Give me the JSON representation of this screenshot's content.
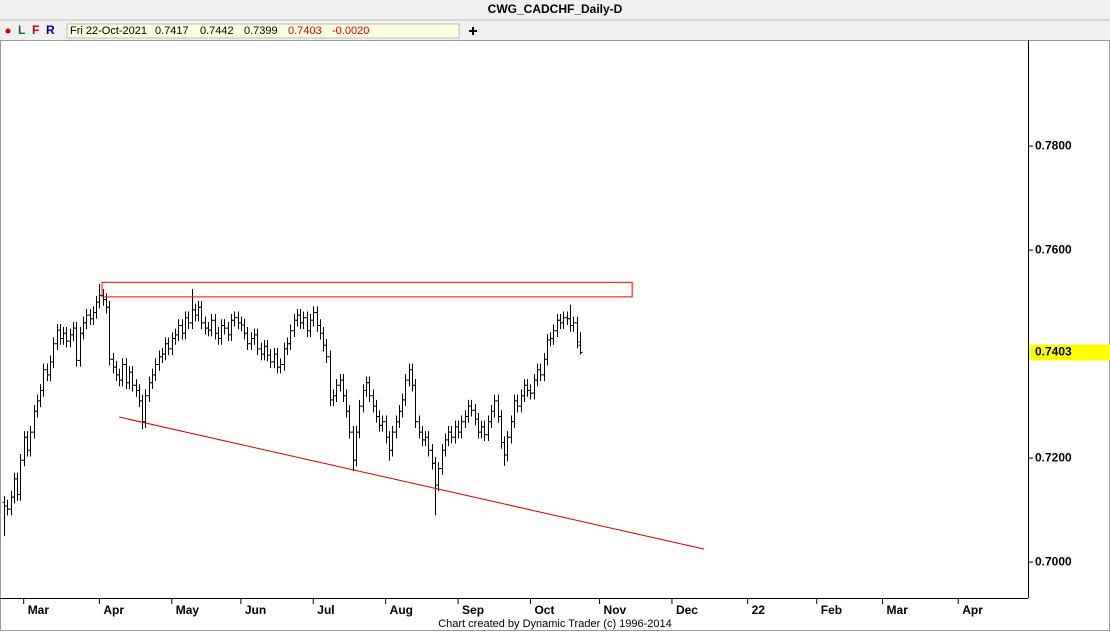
{
  "chart_data": {
    "type": "ohlc",
    "title": "CWG_CADCHF_Daily-D",
    "color": "#000000",
    "open": [
      0.7115,
      0.7108,
      0.7102,
      0.7125,
      0.716,
      0.713,
      0.7196,
      0.724,
      0.7215,
      0.725,
      0.729,
      0.731,
      0.733,
      0.737,
      0.736,
      0.7385,
      0.742,
      0.7446,
      0.743,
      0.744,
      0.7425,
      0.7437,
      0.745,
      0.7388,
      0.744,
      0.746,
      0.7475,
      0.7468,
      0.748,
      0.75,
      0.7513,
      0.7505,
      0.749,
      0.739,
      0.7375,
      0.736,
      0.735,
      0.738,
      0.7345,
      0.7365,
      0.734,
      0.733,
      0.731,
      0.727,
      0.732,
      0.7345,
      0.736,
      0.738,
      0.7395,
      0.74,
      0.742,
      0.741,
      0.743,
      0.7437,
      0.7455,
      0.744,
      0.747,
      0.746,
      0.7485,
      0.7475,
      0.749,
      0.746,
      0.745,
      0.7446,
      0.7465,
      0.744,
      0.743,
      0.7455,
      0.745,
      0.7437,
      0.7465,
      0.747,
      0.746,
      0.7456,
      0.744,
      0.742,
      0.743,
      0.7437,
      0.741,
      0.74,
      0.7415,
      0.7398,
      0.7385,
      0.74,
      0.7375,
      0.738,
      0.741,
      0.742,
      0.7445,
      0.7465,
      0.7475,
      0.746,
      0.747,
      0.7445,
      0.7465,
      0.748,
      0.7455,
      0.744,
      0.7417,
      0.7395,
      0.7312,
      0.732,
      0.734,
      0.735,
      0.732,
      0.729,
      0.725,
      0.7196,
      0.725,
      0.73,
      0.733,
      0.7345,
      0.732,
      0.73,
      0.728,
      0.7263,
      0.727,
      0.724,
      0.7215,
      0.725,
      0.727,
      0.729,
      0.7312,
      0.735,
      0.737,
      0.734,
      0.727,
      0.725,
      0.7235,
      0.724,
      0.7215,
      0.719,
      0.7148,
      0.718,
      0.7215,
      0.7235,
      0.725,
      0.724,
      0.726,
      0.725,
      0.727,
      0.728,
      0.73,
      0.7292,
      0.7275,
      0.725,
      0.726,
      0.7245,
      0.727,
      0.729,
      0.731,
      0.728,
      0.723,
      0.7206,
      0.724,
      0.727,
      0.731,
      0.73,
      0.732,
      0.734,
      0.733,
      0.7325,
      0.735,
      0.737,
      0.736,
      0.739,
      0.7427,
      0.743,
      0.7445,
      0.7465,
      0.746,
      0.747,
      0.7468,
      0.7455,
      0.746,
      0.7417
    ],
    "high": [
      0.7127,
      0.712,
      0.7137,
      0.7172,
      0.7172,
      0.7208,
      0.7252,
      0.7252,
      0.7262,
      0.7302,
      0.7322,
      0.7342,
      0.7382,
      0.7382,
      0.7397,
      0.7432,
      0.7458,
      0.7458,
      0.7452,
      0.7452,
      0.7449,
      0.7462,
      0.7462,
      0.7452,
      0.7472,
      0.7487,
      0.7487,
      0.7492,
      0.7512,
      0.7535,
      0.7525,
      0.7517,
      0.7502,
      0.7402,
      0.7387,
      0.7372,
      0.7392,
      0.7392,
      0.7377,
      0.7377,
      0.7352,
      0.7342,
      0.7322,
      0.7332,
      0.7357,
      0.7372,
      0.7392,
      0.7407,
      0.7412,
      0.7432,
      0.7432,
      0.7442,
      0.7449,
      0.7467,
      0.7467,
      0.7482,
      0.7482,
      0.7525,
      0.7497,
      0.7502,
      0.7502,
      0.7472,
      0.7462,
      0.7477,
      0.7477,
      0.7452,
      0.7467,
      0.7467,
      0.7462,
      0.7477,
      0.7482,
      0.7482,
      0.7472,
      0.7468,
      0.7452,
      0.7442,
      0.7449,
      0.7449,
      0.7422,
      0.7427,
      0.7427,
      0.741,
      0.7412,
      0.7412,
      0.7392,
      0.7422,
      0.7432,
      0.7457,
      0.7477,
      0.7487,
      0.7487,
      0.7482,
      0.7482,
      0.7477,
      0.7492,
      0.7492,
      0.7467,
      0.7452,
      0.7429,
      0.7407,
      0.7332,
      0.7352,
      0.7362,
      0.7362,
      0.7332,
      0.7302,
      0.7262,
      0.7262,
      0.7312,
      0.7342,
      0.7357,
      0.7357,
      0.7332,
      0.7312,
      0.7292,
      0.7282,
      0.7282,
      0.7252,
      0.7262,
      0.7282,
      0.7302,
      0.7324,
      0.7362,
      0.7382,
      0.7382,
      0.7352,
      0.7282,
      0.7262,
      0.7252,
      0.7252,
      0.7227,
      0.7202,
      0.7192,
      0.7227,
      0.7247,
      0.7262,
      0.7262,
      0.7272,
      0.7272,
      0.7282,
      0.7292,
      0.7312,
      0.7312,
      0.7304,
      0.7287,
      0.7272,
      0.7272,
      0.7282,
      0.7302,
      0.7322,
      0.7322,
      0.7292,
      0.7242,
      0.7252,
      0.7282,
      0.7322,
      0.7322,
      0.7332,
      0.7352,
      0.7352,
      0.7342,
      0.7362,
      0.7382,
      0.7382,
      0.7402,
      0.7439,
      0.7442,
      0.7457,
      0.7477,
      0.7477,
      0.7482,
      0.7482,
      0.7495,
      0.7472,
      0.7472,
      0.7442
    ],
    "low": [
      0.705,
      0.709,
      0.709,
      0.7113,
      0.7118,
      0.7118,
      0.7184,
      0.7203,
      0.7203,
      0.7238,
      0.7278,
      0.7298,
      0.7318,
      0.7348,
      0.7348,
      0.7373,
      0.7408,
      0.7418,
      0.7418,
      0.7413,
      0.7413,
      0.7425,
      0.7376,
      0.7376,
      0.7428,
      0.7448,
      0.7456,
      0.7456,
      0.7468,
      0.7488,
      0.7493,
      0.7478,
      0.7378,
      0.7363,
      0.7348,
      0.7338,
      0.7338,
      0.7333,
      0.7333,
      0.7328,
      0.7318,
      0.7298,
      0.7255,
      0.7258,
      0.7308,
      0.7333,
      0.7348,
      0.7368,
      0.7383,
      0.7388,
      0.7398,
      0.7398,
      0.7418,
      0.7425,
      0.7428,
      0.7428,
      0.7448,
      0.7448,
      0.7463,
      0.7463,
      0.7448,
      0.7438,
      0.7434,
      0.7434,
      0.7428,
      0.7418,
      0.7418,
      0.7438,
      0.7425,
      0.7425,
      0.7453,
      0.7448,
      0.7444,
      0.7428,
      0.7408,
      0.7408,
      0.7418,
      0.7398,
      0.7388,
      0.7388,
      0.7386,
      0.7373,
      0.7373,
      0.7363,
      0.7363,
      0.7368,
      0.7398,
      0.7408,
      0.7433,
      0.7453,
      0.7448,
      0.7448,
      0.7433,
      0.7433,
      0.7453,
      0.7443,
      0.7428,
      0.7405,
      0.7383,
      0.73,
      0.73,
      0.7308,
      0.7328,
      0.7308,
      0.7278,
      0.7238,
      0.7175,
      0.7184,
      0.7238,
      0.7288,
      0.7318,
      0.7308,
      0.7288,
      0.7268,
      0.7251,
      0.7251,
      0.7228,
      0.7195,
      0.7203,
      0.7238,
      0.7258,
      0.7278,
      0.73,
      0.7338,
      0.7328,
      0.7258,
      0.7238,
      0.7223,
      0.7223,
      0.7203,
      0.7178,
      0.709,
      0.7136,
      0.7168,
      0.7203,
      0.7223,
      0.7228,
      0.7228,
      0.7238,
      0.7238,
      0.7258,
      0.7268,
      0.728,
      0.7263,
      0.7238,
      0.7238,
      0.7233,
      0.7233,
      0.7258,
      0.7278,
      0.7268,
      0.7218,
      0.7185,
      0.7194,
      0.7228,
      0.7258,
      0.7288,
      0.7288,
      0.7308,
      0.7318,
      0.7313,
      0.7313,
      0.7338,
      0.7348,
      0.7348,
      0.7378,
      0.7415,
      0.7418,
      0.7433,
      0.7448,
      0.7448,
      0.7456,
      0.7443,
      0.7443,
      0.7411,
      0.7399
    ],
    "close": [
      0.7108,
      0.7102,
      0.7125,
      0.716,
      0.713,
      0.7196,
      0.724,
      0.7215,
      0.725,
      0.729,
      0.731,
      0.733,
      0.737,
      0.736,
      0.7385,
      0.742,
      0.7446,
      0.743,
      0.744,
      0.7425,
      0.7437,
      0.745,
      0.7388,
      0.744,
      0.746,
      0.7475,
      0.7468,
      0.748,
      0.75,
      0.7513,
      0.7505,
      0.749,
      0.739,
      0.7375,
      0.736,
      0.735,
      0.738,
      0.7345,
      0.7365,
      0.734,
      0.733,
      0.731,
      0.727,
      0.732,
      0.7345,
      0.736,
      0.738,
      0.7395,
      0.74,
      0.742,
      0.741,
      0.743,
      0.7437,
      0.7455,
      0.744,
      0.747,
      0.746,
      0.7485,
      0.7475,
      0.749,
      0.746,
      0.745,
      0.7446,
      0.7465,
      0.744,
      0.743,
      0.7455,
      0.745,
      0.7437,
      0.7465,
      0.747,
      0.746,
      0.7456,
      0.744,
      0.742,
      0.743,
      0.7437,
      0.741,
      0.74,
      0.7415,
      0.7398,
      0.7385,
      0.74,
      0.7375,
      0.738,
      0.741,
      0.742,
      0.7445,
      0.7465,
      0.7475,
      0.746,
      0.747,
      0.7445,
      0.7465,
      0.748,
      0.7455,
      0.744,
      0.7417,
      0.7395,
      0.7312,
      0.732,
      0.734,
      0.735,
      0.732,
      0.729,
      0.725,
      0.7196,
      0.725,
      0.73,
      0.733,
      0.7345,
      0.732,
      0.73,
      0.728,
      0.7263,
      0.727,
      0.724,
      0.7215,
      0.725,
      0.727,
      0.729,
      0.7312,
      0.735,
      0.737,
      0.734,
      0.727,
      0.725,
      0.7235,
      0.724,
      0.7215,
      0.719,
      0.7148,
      0.718,
      0.7215,
      0.7235,
      0.725,
      0.724,
      0.726,
      0.725,
      0.727,
      0.728,
      0.73,
      0.7292,
      0.7275,
      0.725,
      0.726,
      0.7245,
      0.727,
      0.729,
      0.731,
      0.728,
      0.723,
      0.7206,
      0.724,
      0.727,
      0.731,
      0.73,
      0.732,
      0.734,
      0.733,
      0.7325,
      0.735,
      0.737,
      0.736,
      0.739,
      0.7427,
      0.743,
      0.7445,
      0.7465,
      0.746,
      0.747,
      0.7468,
      0.7455,
      0.746,
      0.7423,
      0.7403
    ],
    "xlim": [
      -1.2,
      311.2
    ],
    "xticks": [
      {
        "value": 6,
        "label": "Mar"
      },
      {
        "value": 29,
        "label": "Apr"
      },
      {
        "value": 51,
        "label": "May"
      },
      {
        "value": 72,
        "label": "Jun"
      },
      {
        "value": 94,
        "label": "Jul"
      },
      {
        "value": 116,
        "label": "Aug"
      },
      {
        "value": 138,
        "label": "Sep"
      },
      {
        "value": 160,
        "label": "Oct"
      },
      {
        "value": 181,
        "label": "Nov"
      },
      {
        "value": 203,
        "label": "Dec"
      },
      {
        "value": 226,
        "label": "22"
      },
      {
        "value": 247,
        "label": "Feb"
      },
      {
        "value": 267,
        "label": "Mar"
      },
      {
        "value": 290,
        "label": "Apr"
      }
    ],
    "ylim": [
      0.6931,
      0.8004
    ],
    "yticks": [
      {
        "value": 0.7,
        "label": "0.7000"
      },
      {
        "value": 0.72,
        "label": "0.7200"
      },
      {
        "value": 0.76,
        "label": "0.7600"
      },
      {
        "value": 0.78,
        "label": "0.7800"
      }
    ],
    "last_price_color": "#ffff00",
    "zone": {
      "x": [
        29.8,
        190.9
      ],
      "y": [
        0.751,
        0.7538
      ],
      "color": "#ff0000"
    },
    "trendline": {
      "x": [
        35,
        212.8
      ],
      "y": [
        0.7279,
        0.7025
      ],
      "color": "#cc0000"
    }
  },
  "toolbar": {
    "buttons": [
      "L",
      "F",
      "R"
    ],
    "date": "Fri 22-Oct-2021",
    "change": {
      "value": -0.002,
      "label": "-0.0020"
    }
  },
  "footer": "Chart created by Dynamic Trader  (c) 1996-2014"
}
